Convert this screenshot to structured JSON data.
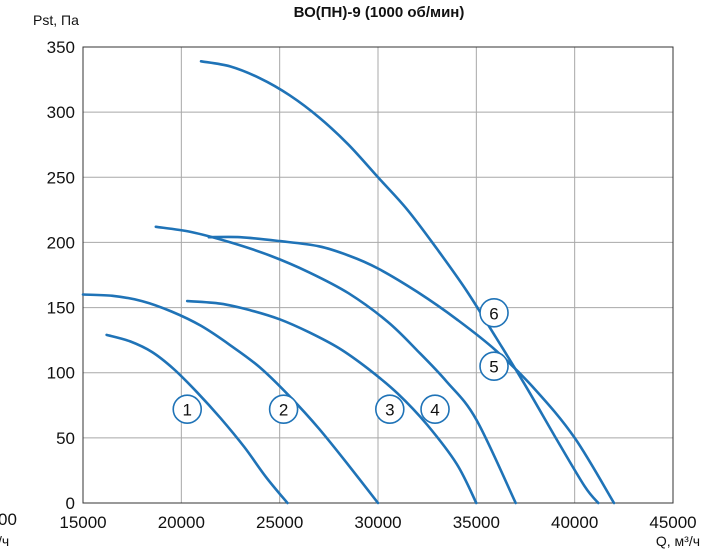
{
  "chart_data": {
    "type": "line",
    "title": "ВО(ПН)-9 (1000 об/мин)",
    "xlabel": "Q, м³/ч",
    "ylabel": "Pst, Па",
    "xlim": [
      15000,
      45000
    ],
    "ylim": [
      0,
      350
    ],
    "x_ticks": [
      "15000",
      "20000",
      "25000",
      "30000",
      "35000",
      "40000",
      "45000"
    ],
    "y_ticks": [
      "0",
      "50",
      "100",
      "150",
      "200",
      "250",
      "300",
      "350"
    ],
    "left_edge_fragments": [
      "00",
      "/ч"
    ],
    "grid": true,
    "line_color": "#1f73b7",
    "series": [
      {
        "label": "1",
        "label_at": [
          20300,
          72
        ],
        "x": [
          16200,
          17400,
          18500,
          19600,
          20800,
          22000,
          23200,
          24300,
          25400
        ],
        "y": [
          129,
          124,
          116,
          103,
          85,
          65,
          43,
          20,
          0
        ]
      },
      {
        "label": "2",
        "label_at": [
          25200,
          72
        ],
        "x": [
          15000,
          16500,
          18000,
          19500,
          21000,
          22500,
          24000,
          25500,
          27000,
          28500,
          30000
        ],
        "y": [
          160,
          159,
          155,
          147,
          136,
          121,
          104,
          82,
          57,
          29,
          0
        ]
      },
      {
        "label": "3",
        "label_at": [
          30600,
          72
        ],
        "x": [
          20300,
          22000,
          23500,
          25000,
          26500,
          28000,
          29500,
          31000,
          32500,
          34000,
          35000
        ],
        "y": [
          155,
          153,
          148,
          141,
          131,
          119,
          103,
          84,
          60,
          30,
          0
        ]
      },
      {
        "label": "4",
        "label_at": [
          32900,
          72
        ],
        "x": [
          18700,
          20500,
          22500,
          24500,
          26500,
          28500,
          30500,
          32000,
          33500,
          35000,
          37000
        ],
        "y": [
          212,
          208,
          200,
          190,
          177,
          161,
          139,
          117,
          93,
          64,
          0
        ]
      },
      {
        "label": "5",
        "label_at": [
          35900,
          105
        ],
        "x": [
          21400,
          23000,
          25000,
          27000,
          28500,
          30000,
          32000,
          34000,
          36000,
          38000,
          40000,
          42000
        ],
        "y": [
          204,
          204,
          201,
          197,
          190,
          180,
          162,
          141,
          117,
          87,
          50,
          0
        ]
      },
      {
        "label": "6",
        "label_at": [
          35900,
          146
        ],
        "x": [
          21000,
          22500,
          24000,
          25500,
          27000,
          28500,
          30000,
          31500,
          33000,
          34500,
          36000,
          37500,
          39000,
          40500,
          41200
        ],
        "y": [
          339,
          335,
          326,
          313,
          296,
          275,
          250,
          225,
          195,
          163,
          127,
          90,
          51,
          13,
          0
        ]
      }
    ]
  }
}
